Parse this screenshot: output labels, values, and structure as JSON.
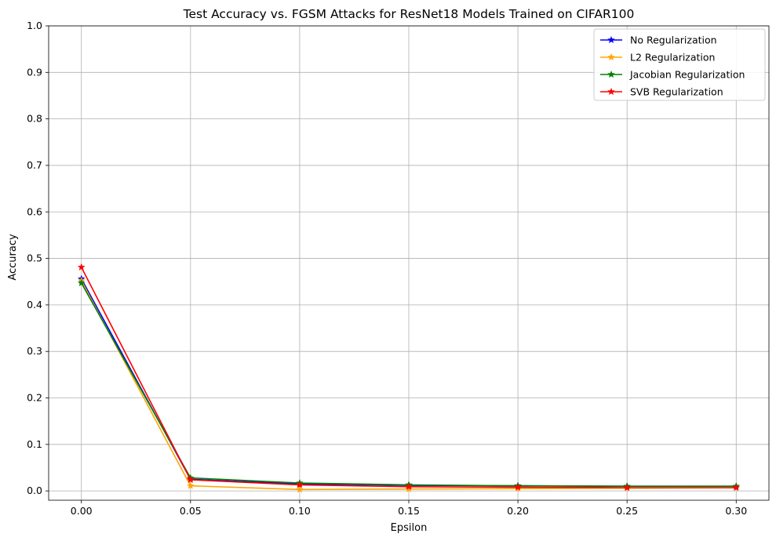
{
  "chart_data": {
    "type": "line",
    "title": "Test Accuracy vs. FGSM Attacks for ResNet18 Models Trained on CIFAR100",
    "xlabel": "Epsilon",
    "ylabel": "Accuracy",
    "x": [
      0.0,
      0.05,
      0.1,
      0.15,
      0.2,
      0.25,
      0.3
    ],
    "x_tick_labels": [
      "0.00",
      "0.05",
      "0.10",
      "0.15",
      "0.20",
      "0.25",
      "0.30"
    ],
    "y_ticks": [
      0.0,
      0.1,
      0.2,
      0.3,
      0.4,
      0.5,
      0.6,
      0.7,
      0.8,
      0.9,
      1.0
    ],
    "y_tick_labels": [
      "0.0",
      "0.1",
      "0.2",
      "0.3",
      "0.4",
      "0.5",
      "0.6",
      "0.7",
      "0.8",
      "0.9",
      "1.0"
    ],
    "xlim": [
      -0.015,
      0.315
    ],
    "ylim": [
      -0.02,
      1.0
    ],
    "grid": true,
    "legend_position": "top-right",
    "marker": "star",
    "series": [
      {
        "name": "No Regularization",
        "color": "#0000ff",
        "values": [
          0.456,
          0.025,
          0.015,
          0.012,
          0.011,
          0.01,
          0.01
        ]
      },
      {
        "name": "L2 Regularization",
        "color": "#ffa500",
        "values": [
          0.452,
          0.011,
          0.003,
          0.004,
          0.005,
          0.006,
          0.007
        ]
      },
      {
        "name": "Jacobian Regularization",
        "color": "#008000",
        "values": [
          0.447,
          0.028,
          0.017,
          0.013,
          0.011,
          0.01,
          0.01
        ]
      },
      {
        "name": "SVB Regularization",
        "color": "#ff0000",
        "values": [
          0.481,
          0.024,
          0.013,
          0.009,
          0.008,
          0.007,
          0.007
        ]
      }
    ]
  }
}
